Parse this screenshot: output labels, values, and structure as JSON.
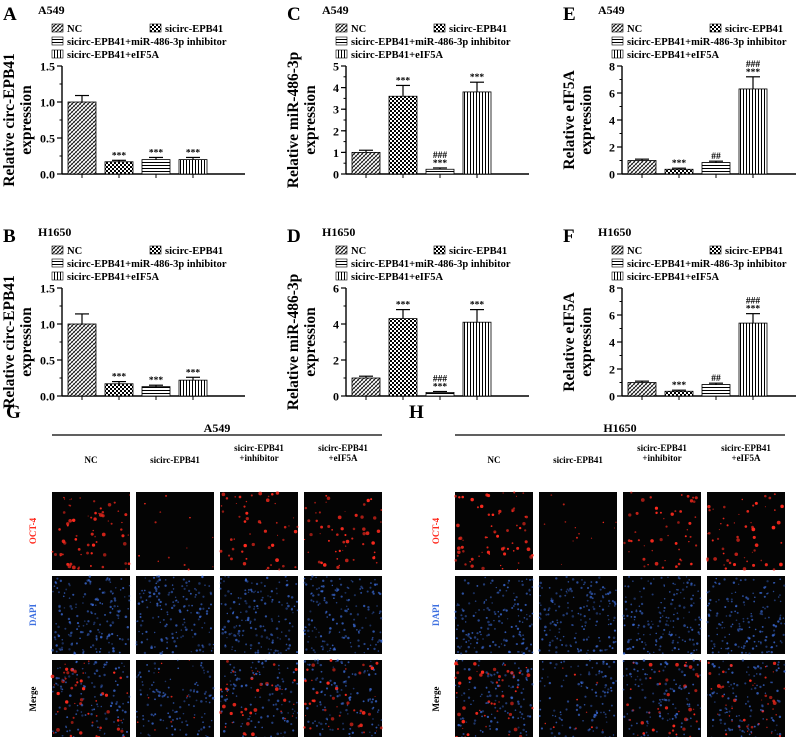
{
  "colors": {
    "red": "#ff2a1e",
    "blue": "#3d6fe0",
    "tile_bg": "#040404"
  },
  "legend_labels": [
    "NC",
    "sicirc-EPB41",
    "sicirc-EPB41+miR-486-3p inhibitor",
    "sicirc-EPB41+eIF5A"
  ],
  "chart_data": [
    {
      "panel": "A",
      "cell_line": "A549",
      "type": "bar",
      "ylabel": [
        "Relative circ-EPB41",
        "expression"
      ],
      "ylim": [
        0,
        1.5
      ],
      "yticks": [
        "0.0",
        "0.5",
        "1.0",
        "1.5"
      ],
      "ytick_values": [
        0,
        0.5,
        1.0,
        1.5
      ],
      "minor_step": 0.25,
      "values": [
        1.0,
        0.17,
        0.2,
        0.2
      ],
      "errors": [
        0.09,
        0.02,
        0.03,
        0.03
      ],
      "sig": [
        [],
        [
          "***"
        ],
        [
          "***"
        ],
        [
          "***"
        ]
      ]
    },
    {
      "panel": "C",
      "cell_line": "A549",
      "type": "bar",
      "ylabel": [
        "Relative miR-486-3p",
        "expression"
      ],
      "ylim": [
        0,
        5
      ],
      "yticks": [
        "0",
        "1",
        "2",
        "3",
        "4",
        "5"
      ],
      "ytick_values": [
        0,
        1,
        2,
        3,
        4,
        5
      ],
      "minor_step": 0.5,
      "values": [
        1.0,
        3.6,
        0.22,
        3.8
      ],
      "errors": [
        0.1,
        0.5,
        0.06,
        0.45
      ],
      "sig": [
        [],
        [
          "***"
        ],
        [
          "###",
          "***"
        ],
        [
          "***"
        ]
      ]
    },
    {
      "panel": "E",
      "cell_line": "A549",
      "type": "bar",
      "ylabel": [
        "Relative eIF5A",
        "expression"
      ],
      "ylim": [
        0,
        8
      ],
      "yticks": [
        "0",
        "2",
        "4",
        "6",
        "8"
      ],
      "ytick_values": [
        0,
        2,
        4,
        6,
        8
      ],
      "minor_step": 1,
      "values": [
        1.0,
        0.35,
        0.85,
        6.3
      ],
      "errors": [
        0.1,
        0.08,
        0.1,
        0.9
      ],
      "sig": [
        [],
        [
          "***"
        ],
        [
          "##"
        ],
        [
          "###",
          "***"
        ]
      ]
    },
    {
      "panel": "B",
      "cell_line": "H1650",
      "type": "bar",
      "ylabel": [
        "Relative circ-EPB41",
        "expression"
      ],
      "ylim": [
        0,
        1.5
      ],
      "yticks": [
        "0.0",
        "0.5",
        "1.0",
        "1.5"
      ],
      "ytick_values": [
        0,
        0.5,
        1.0,
        1.5
      ],
      "minor_step": 0.25,
      "values": [
        1.0,
        0.17,
        0.13,
        0.22
      ],
      "errors": [
        0.14,
        0.03,
        0.02,
        0.04
      ],
      "sig": [
        [],
        [
          "***"
        ],
        [
          "***"
        ],
        [
          "***"
        ]
      ]
    },
    {
      "panel": "D",
      "cell_line": "H1650",
      "type": "bar",
      "ylabel": [
        "Relative miR-486-3p",
        "expression"
      ],
      "ylim": [
        0,
        6
      ],
      "yticks": [
        "0",
        "2",
        "4",
        "6"
      ],
      "ytick_values": [
        0,
        2,
        4,
        6
      ],
      "minor_step": 1,
      "values": [
        1.0,
        4.3,
        0.2,
        4.1
      ],
      "errors": [
        0.1,
        0.5,
        0.05,
        0.7
      ],
      "sig": [
        [],
        [
          "***"
        ],
        [
          "###",
          "***"
        ],
        [
          "***"
        ]
      ]
    },
    {
      "panel": "F",
      "cell_line": "H1650",
      "type": "bar",
      "ylabel": [
        "Relative eIF5A",
        "expression"
      ],
      "ylim": [
        0,
        8
      ],
      "yticks": [
        "0",
        "2",
        "4",
        "6",
        "8"
      ],
      "ytick_values": [
        0,
        2,
        4,
        6,
        8
      ],
      "minor_step": 1,
      "values": [
        1.0,
        0.35,
        0.85,
        5.4
      ],
      "errors": [
        0.1,
        0.08,
        0.1,
        0.7
      ],
      "sig": [
        [],
        [
          "***"
        ],
        [
          "##"
        ],
        [
          "###",
          "***"
        ]
      ]
    }
  ],
  "microscopy": [
    {
      "panel": "G",
      "cell_line": "A549",
      "columns": [
        [
          "NC"
        ],
        [
          "sicirc-EPB41"
        ],
        [
          "sicirc-EPB41",
          "+inhibitor"
        ],
        [
          "sicirc-EPB41",
          "+eIF5A"
        ]
      ],
      "rows": [
        "OCT-4",
        "DAPI",
        "Merge"
      ]
    },
    {
      "panel": "H",
      "cell_line": "H1650",
      "columns": [
        [
          "NC"
        ],
        [
          "sicirc-EPB41"
        ],
        [
          "sicirc-EPB41",
          "+inhibitor"
        ],
        [
          "sicirc-EPB41",
          "+eIF5A"
        ]
      ],
      "rows": [
        "OCT-4",
        "DAPI",
        "Merge"
      ]
    }
  ]
}
